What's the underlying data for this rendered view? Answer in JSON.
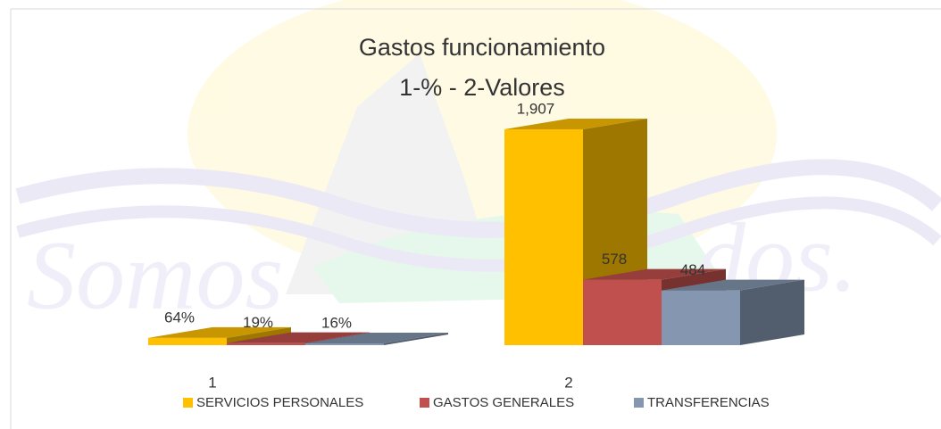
{
  "chart_data": {
    "type": "bar3d",
    "title": "Gastos  funcionamiento",
    "subtitle": "1-% - 2-Valores",
    "categories": [
      "1",
      "2"
    ],
    "series": [
      {
        "name": "SERVICIOS PERSONALES",
        "color": "#ffc000",
        "values": [
          64,
          1907
        ],
        "value_labels": [
          "64%",
          "1,907"
        ]
      },
      {
        "name": "GASTOS GENERALES",
        "color": "#c0504d",
        "values": [
          19,
          578
        ],
        "value_labels": [
          "19%",
          "578"
        ]
      },
      {
        "name": "TRANSFERENCIAS",
        "color": "#8496b0",
        "values": [
          16,
          484
        ],
        "value_labels": [
          "16%",
          "484"
        ]
      }
    ],
    "legend": "bottom"
  }
}
